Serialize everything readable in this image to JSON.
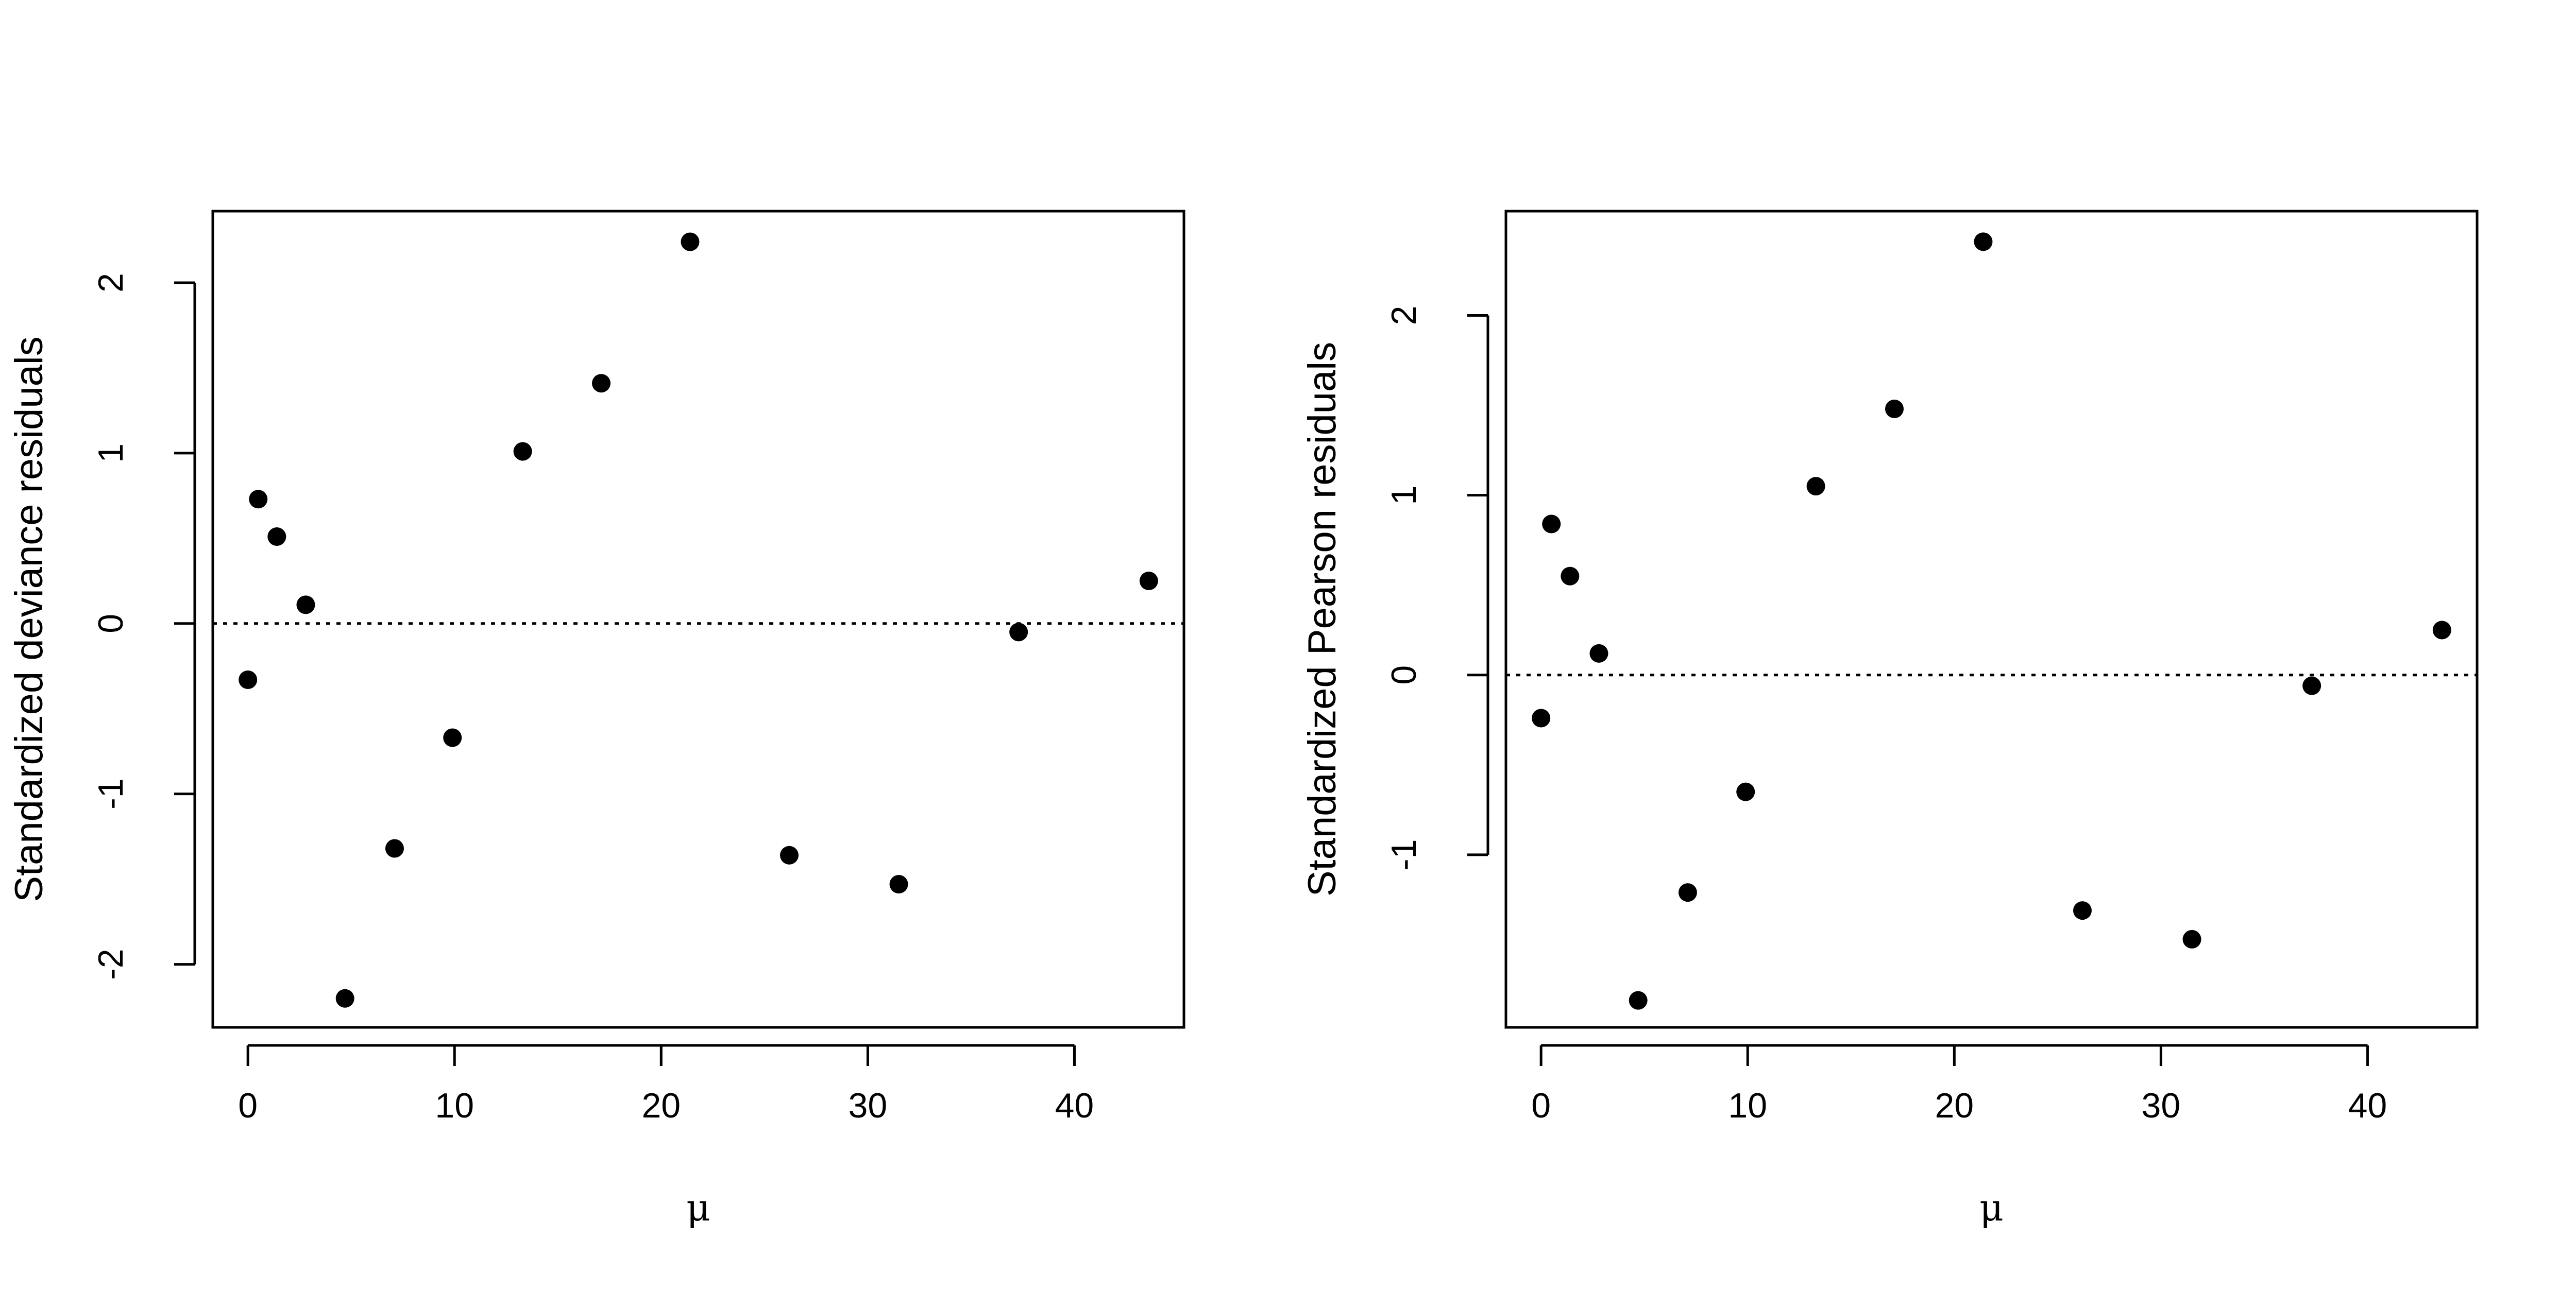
{
  "chart_data": [
    {
      "type": "scatter",
      "xlabel": "μ",
      "ylabel": "Standardized deviance residuals",
      "xlim": [
        -1.7,
        45.3
      ],
      "ylim": [
        -2.37,
        2.42
      ],
      "xticks": [
        0,
        10,
        20,
        30,
        40
      ],
      "yticks": [
        -2,
        -1,
        0,
        1,
        2
      ],
      "reference_line": {
        "y": 0,
        "style": "dotted"
      },
      "grid": false,
      "points": [
        {
          "x": 0.0,
          "y": -0.33
        },
        {
          "x": 0.5,
          "y": 0.73
        },
        {
          "x": 1.4,
          "y": 0.51
        },
        {
          "x": 2.8,
          "y": 0.11
        },
        {
          "x": 4.7,
          "y": -2.2
        },
        {
          "x": 7.1,
          "y": -1.32
        },
        {
          "x": 9.9,
          "y": -0.67
        },
        {
          "x": 13.3,
          "y": 1.01
        },
        {
          "x": 17.1,
          "y": 1.41
        },
        {
          "x": 21.4,
          "y": 2.24
        },
        {
          "x": 26.2,
          "y": -1.36
        },
        {
          "x": 31.5,
          "y": -1.53
        },
        {
          "x": 37.3,
          "y": -0.05
        },
        {
          "x": 43.6,
          "y": 0.25
        }
      ]
    },
    {
      "type": "scatter",
      "xlabel": "μ",
      "ylabel": "Standardized Pearson residuals",
      "xlim": [
        -1.7,
        45.3
      ],
      "ylim": [
        -1.96,
        2.58
      ],
      "xticks": [
        0,
        10,
        20,
        30,
        40
      ],
      "yticks": [
        -1,
        0,
        1,
        2
      ],
      "reference_line": {
        "y": 0,
        "style": "dotted"
      },
      "grid": false,
      "points": [
        {
          "x": 0.0,
          "y": -0.24
        },
        {
          "x": 0.5,
          "y": 0.84
        },
        {
          "x": 1.4,
          "y": 0.55
        },
        {
          "x": 2.8,
          "y": 0.12
        },
        {
          "x": 4.7,
          "y": -1.81
        },
        {
          "x": 7.1,
          "y": -1.21
        },
        {
          "x": 9.9,
          "y": -0.65
        },
        {
          "x": 13.3,
          "y": 1.05
        },
        {
          "x": 17.1,
          "y": 1.48
        },
        {
          "x": 21.4,
          "y": 2.41
        },
        {
          "x": 26.2,
          "y": -1.31
        },
        {
          "x": 31.5,
          "y": -1.47
        },
        {
          "x": 37.3,
          "y": -0.06
        },
        {
          "x": 43.6,
          "y": 0.25
        }
      ]
    }
  ]
}
